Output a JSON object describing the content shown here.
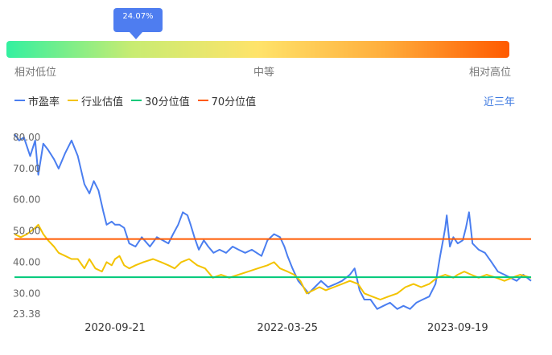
{
  "gauge": {
    "percentile_label": "24.07%",
    "percentile": 24.07,
    "low_label": "相对低位",
    "mid_label": "中等",
    "high_label": "相对高位",
    "gradient": [
      "#33f0a0",
      "#c8ec72",
      "#ffe36a",
      "#ffae3c",
      "#ff5a00"
    ]
  },
  "legend": {
    "items": [
      {
        "label": "市盈率",
        "color": "#4a7ef0"
      },
      {
        "label": "行业估值",
        "color": "#f3c300"
      },
      {
        "label": "30分位值",
        "color": "#00c97a"
      },
      {
        "label": "70分位值",
        "color": "#ff5a00"
      }
    ]
  },
  "range_button": "近三年",
  "chart_data": {
    "type": "line",
    "title": "",
    "xlabel": "",
    "ylabel": "",
    "y_ticks": [
      "80.00",
      "70.00",
      "60.00",
      "50.00",
      "40.00",
      "30.00",
      "23.38"
    ],
    "y_tick_values": [
      80,
      70,
      60,
      50,
      40,
      30,
      23.38
    ],
    "ylim": [
      23.38,
      80
    ],
    "x_range": [
      "2019-11-05",
      "2024-05-10"
    ],
    "x_ticks": [
      "2020-09-21",
      "2022-03-25",
      "2023-09-19"
    ],
    "grid": false,
    "series": [
      {
        "name": "市盈率",
        "color": "#4a7ef0",
        "points": [
          [
            "2019-11-05",
            81
          ],
          [
            "2019-11-20",
            79
          ],
          [
            "2019-12-05",
            80
          ],
          [
            "2019-12-25",
            74
          ],
          [
            "2020-01-10",
            79
          ],
          [
            "2020-01-20",
            68
          ],
          [
            "2020-02-05",
            78
          ],
          [
            "2020-02-20",
            76
          ],
          [
            "2020-03-10",
            73
          ],
          [
            "2020-03-25",
            70
          ],
          [
            "2020-04-15",
            75
          ],
          [
            "2020-05-05",
            79
          ],
          [
            "2020-05-25",
            74
          ],
          [
            "2020-06-15",
            65
          ],
          [
            "2020-07-01",
            62
          ],
          [
            "2020-07-15",
            66
          ],
          [
            "2020-07-30",
            63
          ],
          [
            "2020-08-15",
            56
          ],
          [
            "2020-08-25",
            52
          ],
          [
            "2020-09-10",
            53
          ],
          [
            "2020-09-21",
            52
          ],
          [
            "2020-10-05",
            52
          ],
          [
            "2020-10-20",
            51
          ],
          [
            "2020-11-05",
            46
          ],
          [
            "2020-11-25",
            45
          ],
          [
            "2020-12-15",
            48
          ],
          [
            "2021-01-10",
            45
          ],
          [
            "2021-02-01",
            48
          ],
          [
            "2021-02-20",
            47
          ],
          [
            "2021-03-10",
            46
          ],
          [
            "2021-03-25",
            49
          ],
          [
            "2021-04-10",
            52
          ],
          [
            "2021-04-25",
            56
          ],
          [
            "2021-05-10",
            55
          ],
          [
            "2021-05-20",
            52
          ],
          [
            "2021-06-01",
            48
          ],
          [
            "2021-06-15",
            44
          ],
          [
            "2021-07-01",
            47
          ],
          [
            "2021-07-15",
            45
          ],
          [
            "2021-08-01",
            43
          ],
          [
            "2021-08-20",
            44
          ],
          [
            "2021-09-10",
            43
          ],
          [
            "2021-10-01",
            45
          ],
          [
            "2021-10-20",
            44
          ],
          [
            "2021-11-10",
            43
          ],
          [
            "2021-12-01",
            44
          ],
          [
            "2022-01-01",
            42
          ],
          [
            "2022-01-20",
            47
          ],
          [
            "2022-02-10",
            49
          ],
          [
            "2022-03-01",
            48
          ],
          [
            "2022-03-15",
            45
          ],
          [
            "2022-03-25",
            42
          ],
          [
            "2022-04-10",
            38
          ],
          [
            "2022-04-28",
            34
          ],
          [
            "2022-05-15",
            32
          ],
          [
            "2022-05-31",
            30
          ],
          [
            "2022-06-20",
            32
          ],
          [
            "2022-07-10",
            34
          ],
          [
            "2022-08-01",
            32
          ],
          [
            "2022-08-25",
            33
          ],
          [
            "2022-09-15",
            34
          ],
          [
            "2022-10-10",
            36
          ],
          [
            "2022-10-25",
            38
          ],
          [
            "2022-11-10",
            31
          ],
          [
            "2022-11-25",
            28
          ],
          [
            "2022-12-15",
            28
          ],
          [
            "2023-01-05",
            25
          ],
          [
            "2023-01-25",
            26
          ],
          [
            "2023-02-15",
            27
          ],
          [
            "2023-03-10",
            25
          ],
          [
            "2023-03-30",
            26
          ],
          [
            "2023-04-20",
            25
          ],
          [
            "2023-05-10",
            27
          ],
          [
            "2023-05-30",
            28
          ],
          [
            "2023-06-20",
            29
          ],
          [
            "2023-07-10",
            33
          ],
          [
            "2023-07-25",
            42
          ],
          [
            "2023-08-05",
            48
          ],
          [
            "2023-08-10",
            51
          ],
          [
            "2023-08-15",
            55
          ],
          [
            "2023-08-25",
            45
          ],
          [
            "2023-09-05",
            48
          ],
          [
            "2023-09-19",
            46
          ],
          [
            "2023-10-05",
            47
          ],
          [
            "2023-10-15",
            51
          ],
          [
            "2023-10-25",
            56
          ],
          [
            "2023-11-05",
            46
          ],
          [
            "2023-11-25",
            44
          ],
          [
            "2023-12-15",
            43
          ],
          [
            "2024-01-05",
            40
          ],
          [
            "2024-01-25",
            37
          ],
          [
            "2024-02-15",
            36
          ],
          [
            "2024-03-05",
            35
          ],
          [
            "2024-03-25",
            34
          ],
          [
            "2024-04-15",
            36
          ],
          [
            "2024-05-10",
            34
          ]
        ]
      },
      {
        "name": "行业估值",
        "color": "#f3c300",
        "points": [
          [
            "2019-11-05",
            49
          ],
          [
            "2019-11-25",
            48
          ],
          [
            "2019-12-15",
            49
          ],
          [
            "2020-01-10",
            51
          ],
          [
            "2020-01-20",
            52
          ],
          [
            "2020-02-05",
            49
          ],
          [
            "2020-02-20",
            47
          ],
          [
            "2020-03-10",
            45
          ],
          [
            "2020-03-25",
            43
          ],
          [
            "2020-04-15",
            42
          ],
          [
            "2020-05-05",
            41
          ],
          [
            "2020-05-25",
            41
          ],
          [
            "2020-06-15",
            38
          ],
          [
            "2020-07-01",
            41
          ],
          [
            "2020-07-20",
            38
          ],
          [
            "2020-08-10",
            37
          ],
          [
            "2020-08-25",
            40
          ],
          [
            "2020-09-10",
            39
          ],
          [
            "2020-09-21",
            41
          ],
          [
            "2020-10-05",
            42
          ],
          [
            "2020-10-20",
            39
          ],
          [
            "2020-11-05",
            38
          ],
          [
            "2020-11-25",
            39
          ],
          [
            "2020-12-20",
            40
          ],
          [
            "2021-01-20",
            41
          ],
          [
            "2021-02-15",
            40
          ],
          [
            "2021-03-10",
            39
          ],
          [
            "2021-03-30",
            38
          ],
          [
            "2021-04-20",
            40
          ],
          [
            "2021-05-15",
            41
          ],
          [
            "2021-06-10",
            39
          ],
          [
            "2021-07-05",
            38
          ],
          [
            "2021-07-30",
            35
          ],
          [
            "2021-08-25",
            36
          ],
          [
            "2021-09-20",
            35
          ],
          [
            "2021-10-20",
            36
          ],
          [
            "2021-11-20",
            37
          ],
          [
            "2021-12-20",
            38
          ],
          [
            "2022-01-20",
            39
          ],
          [
            "2022-02-10",
            40
          ],
          [
            "2022-03-01",
            38
          ],
          [
            "2022-03-25",
            37
          ],
          [
            "2022-04-15",
            36
          ],
          [
            "2022-05-05",
            34
          ],
          [
            "2022-05-25",
            30
          ],
          [
            "2022-06-15",
            31
          ],
          [
            "2022-07-05",
            32
          ],
          [
            "2022-07-25",
            31
          ],
          [
            "2022-08-20",
            32
          ],
          [
            "2022-09-15",
            33
          ],
          [
            "2022-10-10",
            34
          ],
          [
            "2022-11-05",
            33
          ],
          [
            "2022-11-25",
            30
          ],
          [
            "2022-12-20",
            29
          ],
          [
            "2023-01-15",
            28
          ],
          [
            "2023-02-10",
            29
          ],
          [
            "2023-03-10",
            30
          ],
          [
            "2023-04-05",
            32
          ],
          [
            "2023-05-01",
            33
          ],
          [
            "2023-05-25",
            32
          ],
          [
            "2023-06-20",
            33
          ],
          [
            "2023-07-15",
            35
          ],
          [
            "2023-08-10",
            36
          ],
          [
            "2023-09-05",
            35
          ],
          [
            "2023-09-19",
            36
          ],
          [
            "2023-10-10",
            37
          ],
          [
            "2023-11-01",
            36
          ],
          [
            "2023-11-25",
            35
          ],
          [
            "2023-12-20",
            36
          ],
          [
            "2024-01-20",
            35
          ],
          [
            "2024-02-15",
            34
          ],
          [
            "2024-03-10",
            35
          ],
          [
            "2024-04-05",
            36
          ],
          [
            "2024-05-10",
            35
          ]
        ]
      },
      {
        "name": "30分位值",
        "color": "#00c97a",
        "constant": 35.2
      },
      {
        "name": "70分位值",
        "color": "#ff5a00",
        "constant": 47.4
      }
    ]
  }
}
